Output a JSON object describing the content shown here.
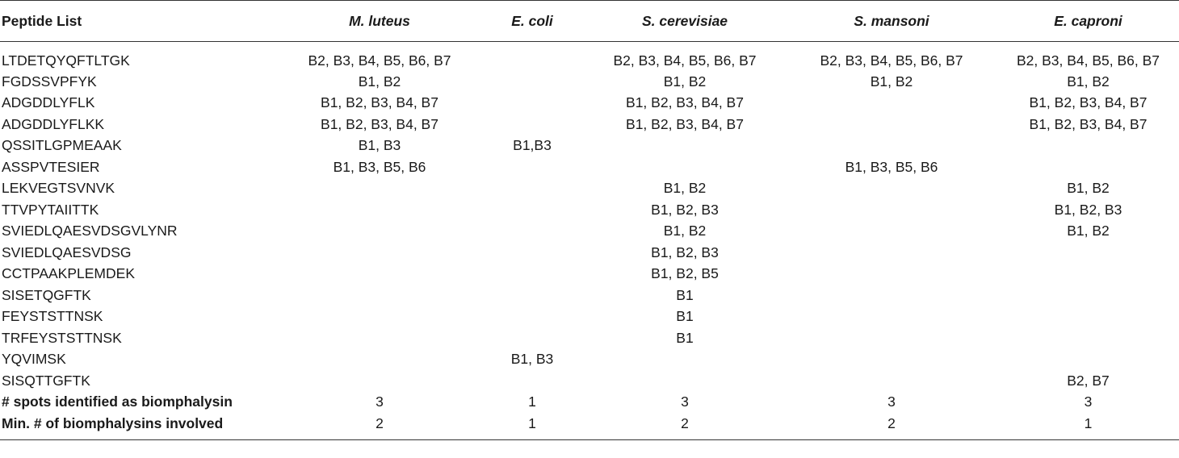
{
  "table": {
    "headers": [
      "Peptide List",
      "M. luteus",
      "E. coli",
      "S. cerevisiae",
      "S. mansoni",
      "E. caproni"
    ],
    "rows": [
      [
        "LTDETQYQFTLTGK",
        "B2, B3, B4, B5, B6, B7",
        "",
        "B2, B3, B4, B5, B6, B7",
        "B2, B3, B4, B5, B6, B7",
        "B2, B3, B4, B5, B6, B7"
      ],
      [
        "FGDSSVPFYK",
        "B1, B2",
        "",
        "B1, B2",
        "B1, B2",
        "B1, B2"
      ],
      [
        "ADGDDLYFLK",
        "B1, B2, B3, B4, B7",
        "",
        "B1, B2, B3, B4, B7",
        "",
        "B1, B2, B3, B4, B7"
      ],
      [
        "ADGDDLYFLKK",
        "B1, B2, B3, B4, B7",
        "",
        "B1, B2, B3, B4, B7",
        "",
        "B1, B2, B3, B4, B7"
      ],
      [
        "QSSITLGPMEAAK",
        "B1, B3",
        "B1,B3",
        "",
        "",
        ""
      ],
      [
        "ASSPVTESIER",
        "B1, B3, B5, B6",
        "",
        "",
        "B1, B3, B5, B6",
        ""
      ],
      [
        "LEKVEGTSVNVK",
        "",
        "",
        "B1, B2",
        "",
        "B1, B2"
      ],
      [
        "TTVPYTAIITTK",
        "",
        "",
        "B1, B2, B3",
        "",
        "B1, B2, B3"
      ],
      [
        "SVIEDLQAESVDSGVLYNR",
        "",
        "",
        "B1, B2",
        "",
        "B1, B2"
      ],
      [
        "SVIEDLQAESVDSG",
        "",
        "",
        "B1, B2, B3",
        "",
        ""
      ],
      [
        "CCTPAAKPLEMDEK",
        "",
        "",
        "B1, B2, B5",
        "",
        ""
      ],
      [
        "SISETQGFTK",
        "",
        "",
        "B1",
        "",
        ""
      ],
      [
        "FEYSTSTTNSK",
        "",
        "",
        "B1",
        "",
        ""
      ],
      [
        "TRFEYSTSTTNSK",
        "",
        "",
        "B1",
        "",
        ""
      ],
      [
        "YQVIMSK",
        "",
        "B1, B3",
        "",
        "",
        ""
      ],
      [
        "SISQTTGFTK",
        "",
        "",
        "",
        "",
        "B2, B7"
      ]
    ],
    "summary": [
      [
        "# spots identified as biomphalysin",
        "3",
        "1",
        "3",
        "3",
        "3"
      ],
      [
        "Min. # of biomphalysins involved",
        "2",
        "1",
        "2",
        "2",
        "1"
      ]
    ]
  }
}
